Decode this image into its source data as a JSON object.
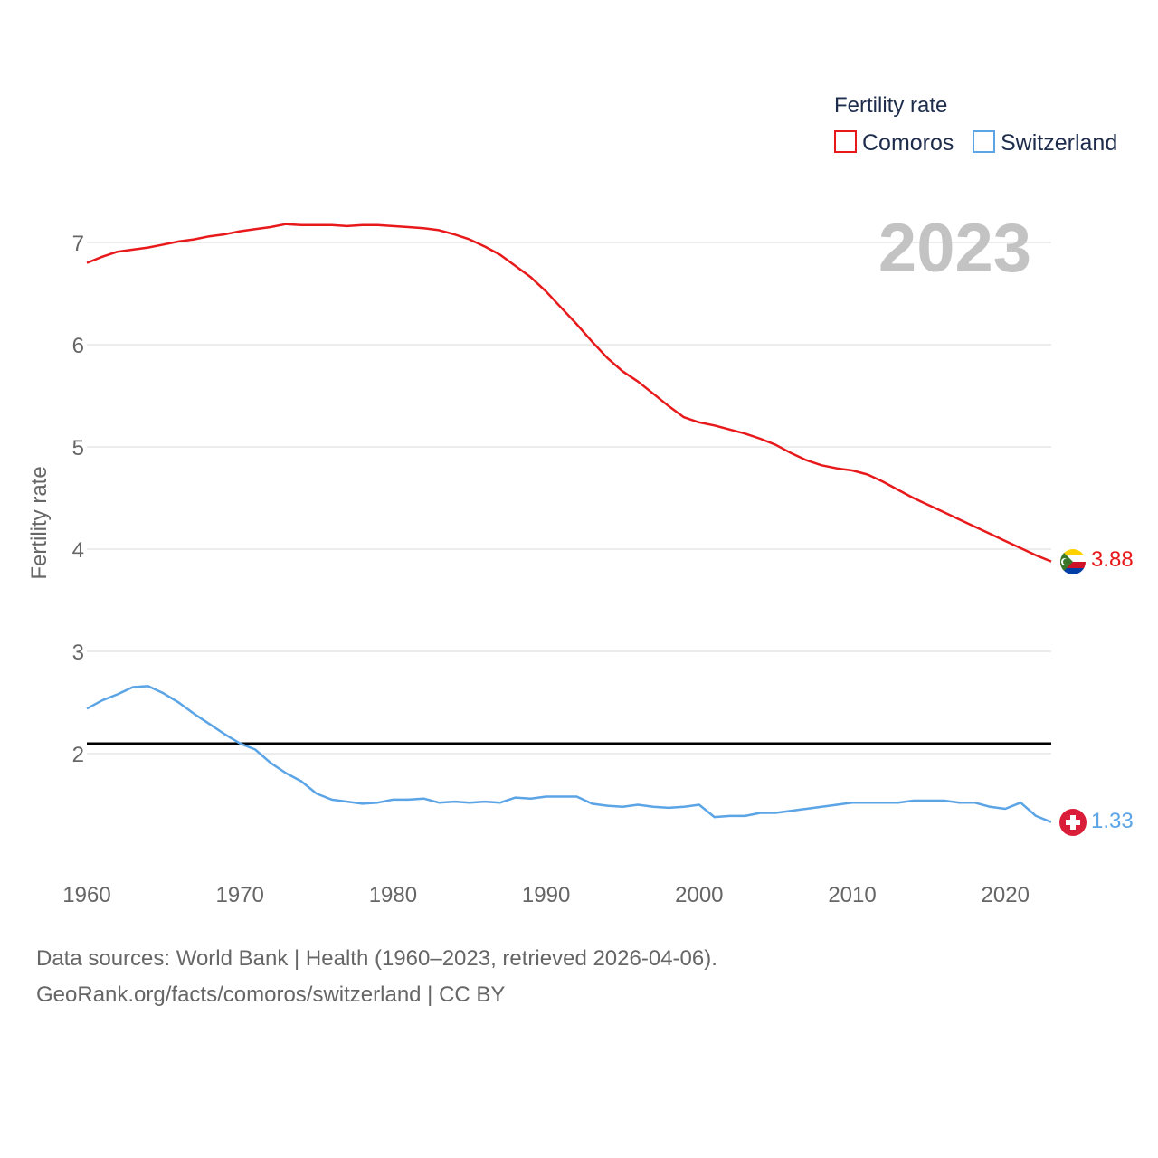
{
  "chart_data": {
    "type": "line",
    "ylabel": "Fertility rate",
    "xlabel": "",
    "xlim": [
      1960,
      2023
    ],
    "ylim": [
      1,
      7.5
    ],
    "yticks": [
      2,
      3,
      4,
      5,
      6,
      7
    ],
    "xticks": [
      1960,
      1970,
      1980,
      1990,
      2000,
      2010,
      2020
    ],
    "legend": {
      "title": "Fertility rate",
      "position": "top-right"
    },
    "year_label": "2023",
    "reference_line": {
      "y": 2.1,
      "color": "#000000"
    },
    "x": [
      1960,
      1961,
      1962,
      1963,
      1964,
      1965,
      1966,
      1967,
      1968,
      1969,
      1970,
      1971,
      1972,
      1973,
      1974,
      1975,
      1976,
      1977,
      1978,
      1979,
      1980,
      1981,
      1982,
      1983,
      1984,
      1985,
      1986,
      1987,
      1988,
      1989,
      1990,
      1991,
      1992,
      1993,
      1994,
      1995,
      1996,
      1997,
      1998,
      1999,
      2000,
      2001,
      2002,
      2003,
      2004,
      2005,
      2006,
      2007,
      2008,
      2009,
      2010,
      2011,
      2012,
      2013,
      2014,
      2015,
      2016,
      2017,
      2018,
      2019,
      2020,
      2021,
      2022,
      2023
    ],
    "series": [
      {
        "name": "Comoros",
        "color": "#e8191b",
        "end_label": "3.88",
        "values": [
          6.8,
          6.86,
          6.91,
          6.93,
          6.95,
          6.98,
          7.01,
          7.03,
          7.06,
          7.08,
          7.11,
          7.13,
          7.15,
          7.18,
          7.17,
          7.17,
          7.17,
          7.16,
          7.17,
          7.17,
          7.16,
          7.15,
          7.14,
          7.12,
          7.08,
          7.03,
          6.96,
          6.88,
          6.77,
          6.66,
          6.52,
          6.36,
          6.2,
          6.03,
          5.87,
          5.74,
          5.64,
          5.52,
          5.4,
          5.29,
          5.24,
          5.21,
          5.17,
          5.13,
          5.08,
          5.02,
          4.94,
          4.87,
          4.82,
          4.79,
          4.77,
          4.73,
          4.66,
          4.58,
          4.5,
          4.43,
          4.36,
          4.29,
          4.22,
          4.15,
          4.08,
          4.01,
          3.94,
          3.88
        ]
      },
      {
        "name": "Switzerland",
        "color": "#5ba4e6",
        "end_label": "1.33",
        "values": [
          2.44,
          2.52,
          2.58,
          2.65,
          2.66,
          2.59,
          2.5,
          2.39,
          2.29,
          2.19,
          2.1,
          2.04,
          1.91,
          1.81,
          1.73,
          1.61,
          1.55,
          1.53,
          1.51,
          1.52,
          1.55,
          1.55,
          1.56,
          1.52,
          1.53,
          1.52,
          1.53,
          1.52,
          1.57,
          1.56,
          1.58,
          1.58,
          1.58,
          1.51,
          1.49,
          1.48,
          1.5,
          1.48,
          1.47,
          1.48,
          1.5,
          1.38,
          1.39,
          1.39,
          1.42,
          1.42,
          1.44,
          1.46,
          1.48,
          1.5,
          1.52,
          1.52,
          1.52,
          1.52,
          1.54,
          1.54,
          1.54,
          1.52,
          1.52,
          1.48,
          1.46,
          1.52,
          1.39,
          1.33
        ]
      }
    ]
  },
  "source": {
    "line1": "Data sources: World Bank | Health (1960–2023, retrieved 2026-04-06).",
    "line2": "GeoRank.org/facts/comoros/switzerland | CC BY"
  },
  "flags": {
    "comoros": "comoros-flag-icon",
    "switzerland": "switzerland-flag-icon"
  }
}
